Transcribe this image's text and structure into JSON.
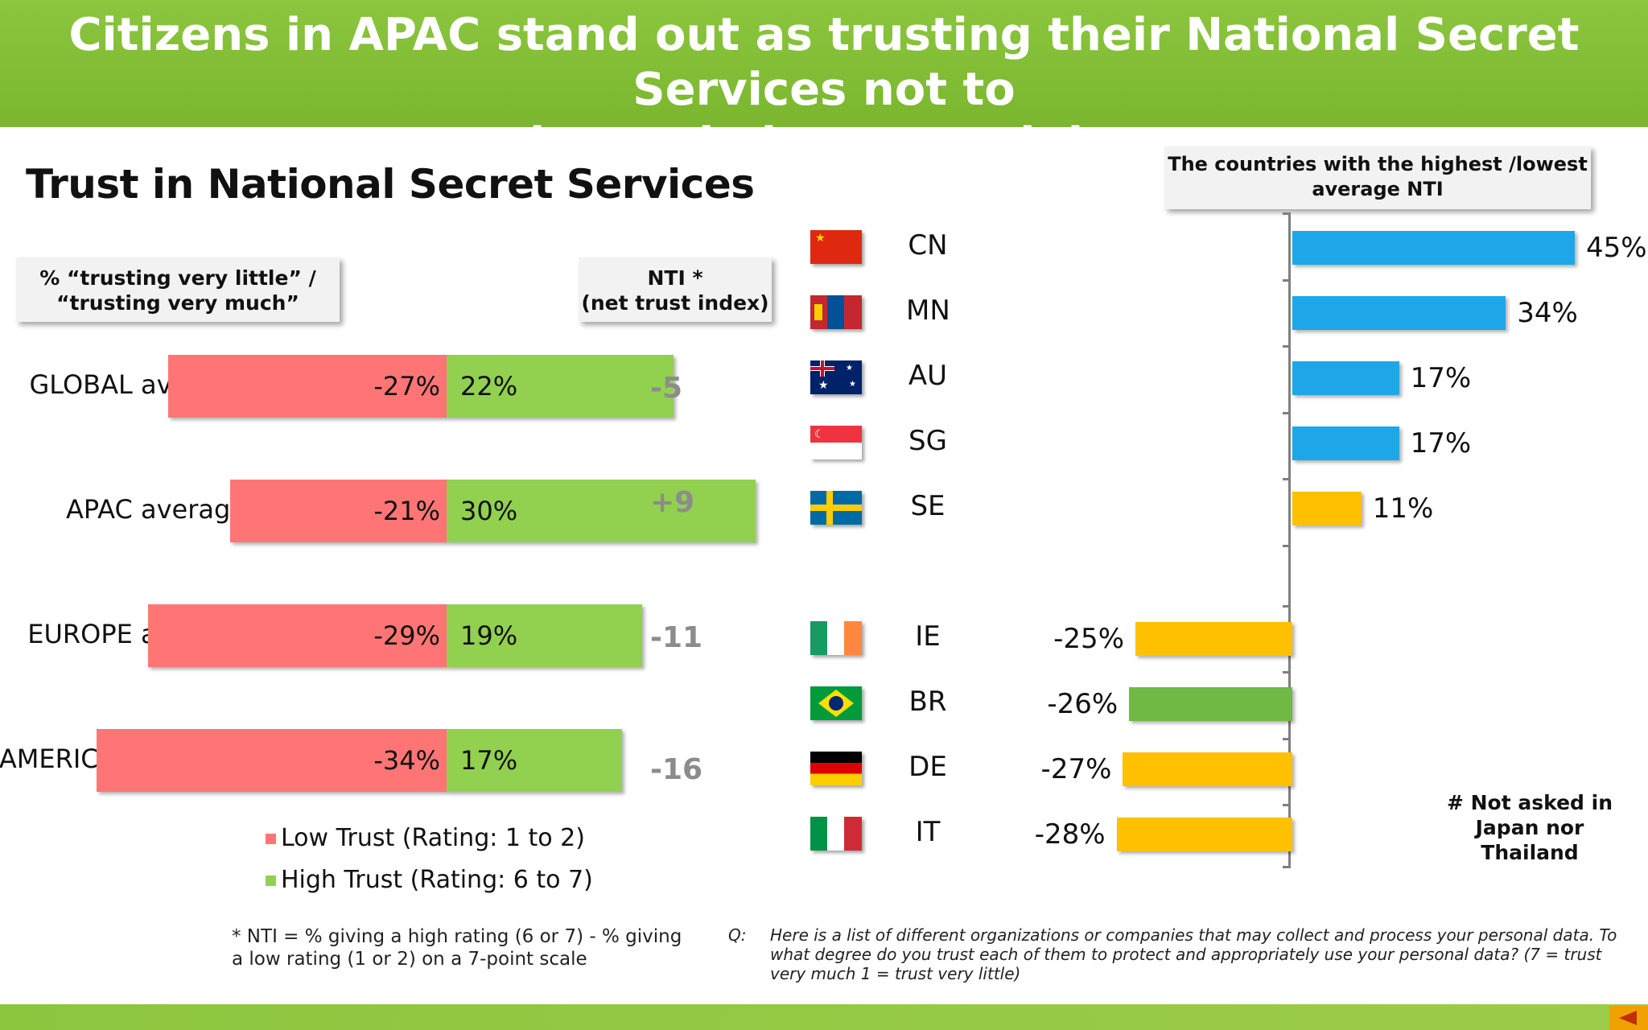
{
  "header": {
    "title_line1": "Citizens in APAC stand out as trusting their National Secret Services not to",
    "title_line2": "misuse their personal data"
  },
  "section_title": "Trust in National Secret Services",
  "left_box": {
    "line1": "% “trusting very  little” /",
    "line2": "“trusting very much”"
  },
  "nti_box": {
    "line1": "NTI *",
    "line2": "(net trust index)"
  },
  "top_box": {
    "line1": "The countries with the highest /lowest",
    "line2": "average NTI"
  },
  "legend": {
    "low": "Low Trust (Rating: 1 to 2)",
    "high": "High Trust (Rating: 6 to 7)"
  },
  "note": "* NTI = % giving a high rating (6 or 7) - % giving a low rating (1 or 2) on a 7-point scale",
  "question": {
    "label": "Q:",
    "text": "Here is a list of different organizations or companies that may collect and process your personal data.  To what degree do you trust each of them to protect and appropriately use your personal data? (7 = trust very much 1 = trust very little)"
  },
  "not_asked": {
    "line1": "# Not asked in",
    "line2": "Japan nor",
    "line3": "Thailand"
  },
  "colors": {
    "header": "#8cc63f",
    "low_trust": "#ff7575",
    "high_trust": "#92d050",
    "top_blue": "#1ea7e8",
    "orange": "#ffc000",
    "green": "#70b944",
    "nti_gray": "#8c8c8c"
  },
  "chart_data": [
    {
      "type": "bar",
      "orientation": "horizontal-diverging",
      "title": "Trust in National Secret Services",
      "categories": [
        "GLOBAL average",
        "APAC average",
        "EUROPE average",
        "AMERICAS average"
      ],
      "series": [
        {
          "name": "Low Trust (Rating: 1 to 2)",
          "values": [
            -27,
            -21,
            -29,
            -34
          ],
          "labels": [
            "-27%",
            "-21%",
            "-29%",
            "-34%"
          ]
        },
        {
          "name": "High Trust (Rating: 6 to 7)",
          "values": [
            22,
            30,
            19,
            17
          ],
          "labels": [
            "22%",
            "30%",
            "19%",
            "17%"
          ]
        }
      ],
      "nti": {
        "values": [
          -5,
          9,
          -11,
          -16
        ],
        "labels": [
          "-5",
          "+9",
          "-11",
          "-16"
        ]
      },
      "legend": "bottom"
    },
    {
      "type": "bar",
      "orientation": "horizontal",
      "categories": [
        "CN",
        "MN",
        "AU",
        "SG",
        "SE",
        "IE",
        "BR",
        "DE",
        "IT"
      ],
      "values": [
        45,
        34,
        17,
        17,
        11,
        -25,
        -26,
        -27,
        -28
      ],
      "labels": [
        "45%",
        "34%",
        "17%",
        "17%",
        "11%",
        "-25%",
        "-26%",
        "-27%",
        "-28%"
      ],
      "bar_colors": [
        "blue",
        "blue",
        "blue",
        "blue",
        "orange",
        "orange",
        "green",
        "orange",
        "orange"
      ],
      "flags": [
        "china-flag-icon",
        "mongolia-flag-icon",
        "australia-flag-icon",
        "singapore-flag-icon",
        "sweden-flag-icon",
        "ireland-flag-icon",
        "brazil-flag-icon",
        "germany-flag-icon",
        "italy-flag-icon"
      ]
    }
  ]
}
